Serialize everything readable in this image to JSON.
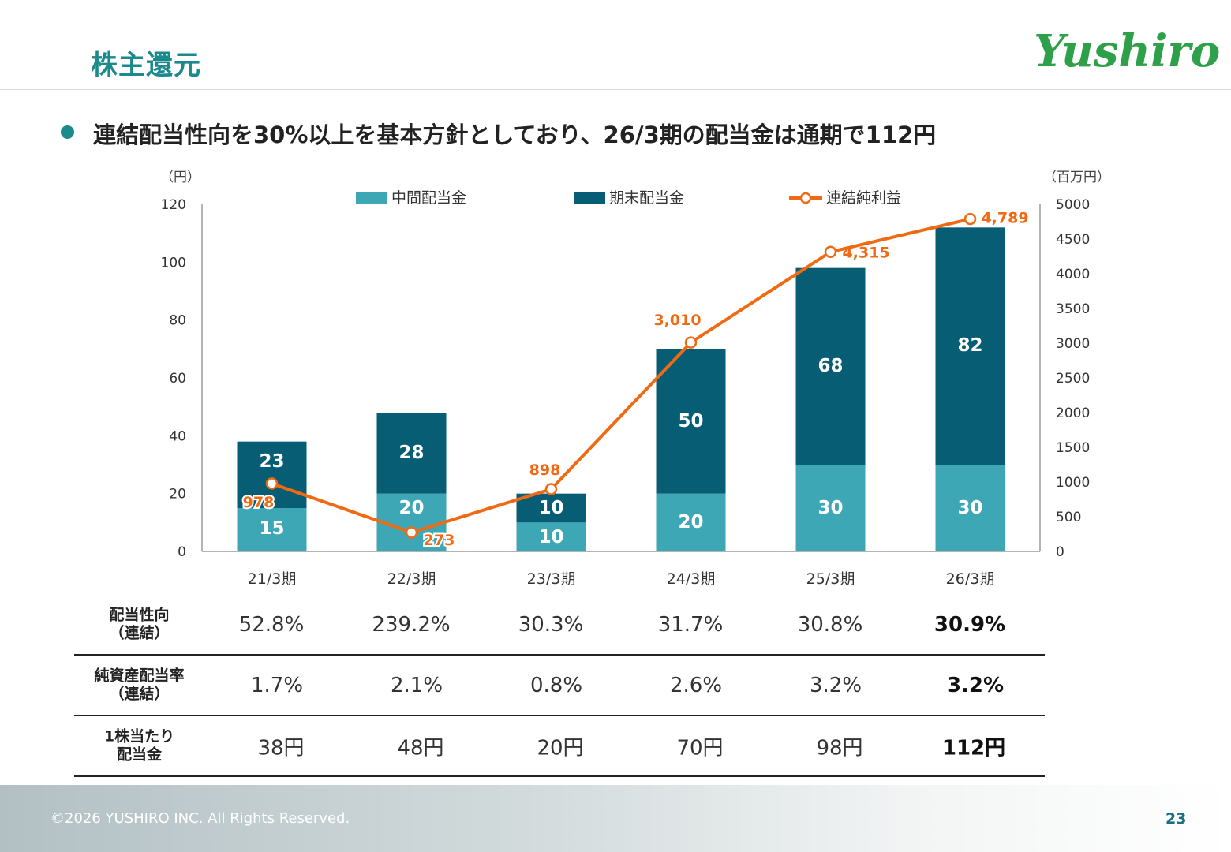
{
  "header": {
    "title": "株主還元",
    "logo_text": "Yushiro"
  },
  "headline": "連結配当性向を30%以上を基本方針としており、26/3期の配当金は通期で112円",
  "units": {
    "left": "（円）",
    "right": "（百万円）"
  },
  "chart_data": {
    "type": "bar",
    "categories": [
      "21/3期",
      "22/3期",
      "23/3期",
      "24/3期",
      "25/3期",
      "26/3期"
    ],
    "series": [
      {
        "name": "中間配当金",
        "type": "bar",
        "stack": "dividend",
        "axis": "left",
        "color": "#3ea7b5",
        "values": [
          15,
          20,
          10,
          20,
          30,
          30
        ]
      },
      {
        "name": "期末配当金",
        "type": "bar",
        "stack": "dividend",
        "axis": "left",
        "color": "#065d74",
        "values": [
          23,
          28,
          10,
          50,
          68,
          82
        ]
      },
      {
        "name": "連結純利益",
        "type": "line",
        "axis": "right",
        "color": "#f06a14",
        "values": [
          978,
          273,
          898,
          3010,
          4315,
          4789
        ],
        "labels": [
          "978",
          "273",
          "898",
          "3,010",
          "4,315",
          "4,789"
        ]
      }
    ],
    "y_left": {
      "range": [
        0,
        120
      ],
      "ticks": [
        "0",
        "20",
        "40",
        "60",
        "80",
        "100",
        "120"
      ]
    },
    "y_right": {
      "range": [
        0,
        5000
      ],
      "ticks": [
        "0",
        "500",
        "1000",
        "1500",
        "2000",
        "2500",
        "3000",
        "3500",
        "4000",
        "4500",
        "5000"
      ]
    },
    "legend_position": "top",
    "grid": false
  },
  "table": {
    "rows": [
      {
        "label": "配当性向\n（連結）",
        "values": [
          "52.8%",
          "239.2%",
          "30.3%",
          "31.7%",
          "30.8%",
          "30.9%"
        ]
      },
      {
        "label": "純資産配当率\n（連結）",
        "values": [
          "1.7%",
          "2.1%",
          "0.8%",
          "2.6%",
          "3.2%",
          "3.2%"
        ]
      },
      {
        "label": "1株当たり\n配当金",
        "values": [
          "38円",
          "48円",
          "20円",
          "70円",
          "98円",
          "112円"
        ]
      }
    ]
  },
  "footer": {
    "copyright": "©2026 YUSHIRO INC. All Rights Reserved.",
    "page": "23"
  }
}
